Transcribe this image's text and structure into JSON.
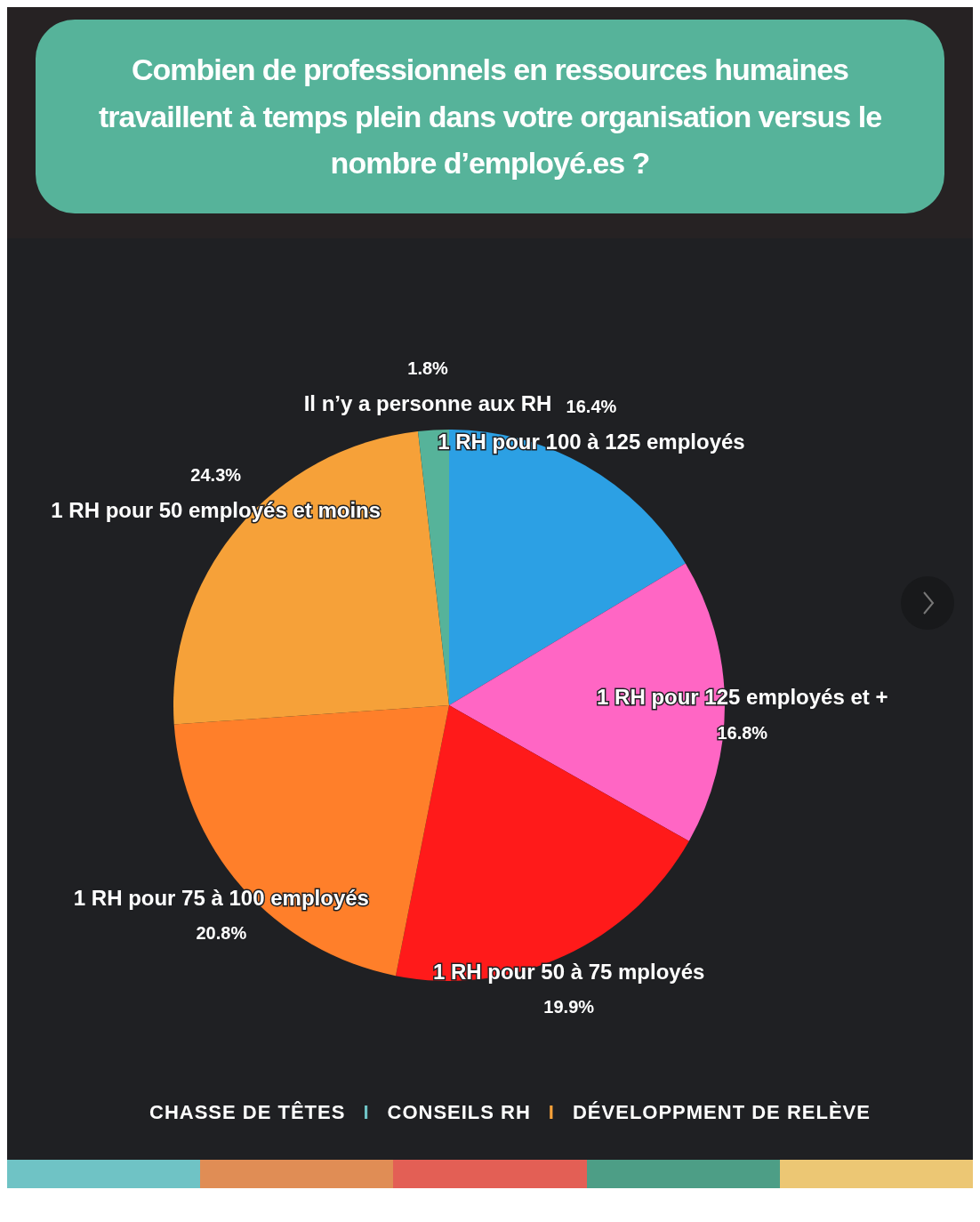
{
  "chart_data": {
    "type": "pie",
    "title": "Combien de professionnels en ressources humaines travaillent à temps plein dans votre organisation versus le nombre d’employé.es ?",
    "categories": [
      "1 RH pour 100 à 125 employés",
      "1 RH pour 125 employés et +",
      "1 RH pour 50 à 75 mployés",
      "1 RH pour 75 à 100 employés",
      "1 RH pour 50 employés et moins",
      "Il n’y a personne aux RH"
    ],
    "values": [
      16.4,
      16.8,
      19.9,
      20.8,
      24.3,
      1.8
    ],
    "value_labels": [
      "16.4%",
      "16.8%",
      "19.9%",
      "20.8%",
      "24.3%",
      "1.8%"
    ],
    "colors": [
      "#2ca0e4",
      "#ff66c4",
      "#ff1a1a",
      "#ff7f2a",
      "#f6a139",
      "#56b39a"
    ],
    "annotations": [
      "CHASSE DE TÊTES",
      "I",
      "CONSEILS RH",
      "I",
      "DÉVELOPPMENT DE RELÈVE"
    ]
  }
}
